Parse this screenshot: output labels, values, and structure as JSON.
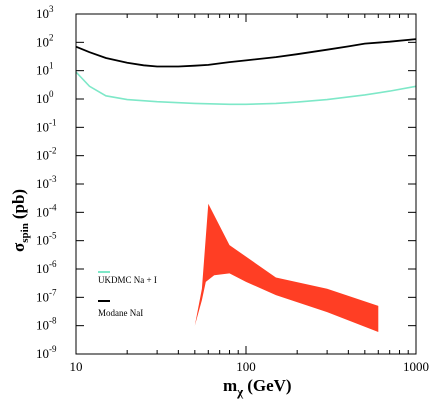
{
  "chart_data": {
    "type": "line",
    "xscale": "log",
    "yscale": "log",
    "xlim": [
      10,
      1000
    ],
    "ylim": [
      1e-09,
      1000
    ],
    "xlabel": {
      "main": "m",
      "sub": "χ",
      "units": "(GeV)"
    },
    "ylabel": {
      "main": "σ",
      "sub": "spin",
      "units": "(pb)"
    },
    "x_tick_labels": [
      "10",
      "100",
      "1000"
    ],
    "y_tick_labels": [
      {
        "base": "10",
        "exp": "3"
      },
      {
        "base": "10",
        "exp": "2"
      },
      {
        "base": "10",
        "exp": "1"
      },
      {
        "base": "10",
        "exp": "0"
      },
      {
        "base": "10",
        "exp": "-1"
      },
      {
        "base": "10",
        "exp": "-2"
      },
      {
        "base": "10",
        "exp": "-3"
      },
      {
        "base": "10",
        "exp": "-4"
      },
      {
        "base": "10",
        "exp": "-5"
      },
      {
        "base": "10",
        "exp": "-6"
      },
      {
        "base": "10",
        "exp": "-7"
      },
      {
        "base": "10",
        "exp": "-8"
      },
      {
        "base": "10",
        "exp": "-9"
      }
    ],
    "series": [
      {
        "name": "Modane NaI",
        "color": "#000000",
        "x": [
          10,
          12,
          15,
          20,
          25,
          30,
          40,
          50,
          60,
          70,
          80,
          100,
          150,
          200,
          300,
          400,
          500,
          700,
          1000
        ],
        "y": [
          70,
          45,
          28,
          19,
          15.5,
          14,
          14,
          15,
          16,
          18,
          20,
          23,
          30,
          38,
          55,
          72,
          90,
          105,
          130
        ]
      },
      {
        "name": "UKDMC Na + I",
        "color": "#7ee8c8",
        "x": [
          10,
          12,
          15,
          20,
          30,
          50,
          80,
          100,
          150,
          200,
          300,
          500,
          700,
          1000
        ],
        "y": [
          9,
          2.8,
          1.3,
          0.95,
          0.8,
          0.7,
          0.65,
          0.65,
          0.7,
          0.78,
          0.95,
          1.4,
          1.9,
          2.8
        ]
      }
    ],
    "region": {
      "color": "#ff3e24",
      "polygon": [
        [
          50,
          1e-08
        ],
        [
          55,
          2e-07
        ],
        [
          60,
          0.0002
        ],
        [
          80,
          7e-06
        ],
        [
          150,
          5e-07
        ],
        [
          300,
          2e-07
        ],
        [
          600,
          5e-08
        ],
        [
          600,
          6e-09
        ],
        [
          300,
          3e-08
        ],
        [
          150,
          1.2e-07
        ],
        [
          100,
          3.5e-07
        ],
        [
          80,
          7e-07
        ],
        [
          65,
          6e-07
        ],
        [
          58,
          3.5e-07
        ],
        [
          55,
          8e-08
        ]
      ]
    },
    "legend": {
      "placement": "lower-left",
      "entries": [
        "UKDMC Na + I",
        "Modane NaI"
      ]
    }
  }
}
